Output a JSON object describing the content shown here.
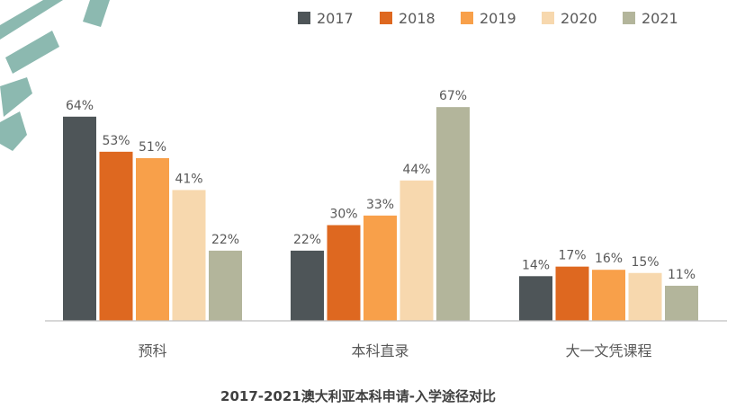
{
  "chart_data": {
    "type": "bar",
    "title": "2017-2021澳大利亚本科申请-入学途径对比",
    "categories": [
      "预科",
      "本科直录",
      "大一文凭课程"
    ],
    "series": [
      {
        "name": "2017",
        "color": "#4e5558",
        "values": [
          64,
          22,
          14
        ],
        "labels": [
          "64%",
          "22%",
          "14%"
        ]
      },
      {
        "name": "2018",
        "color": "#de6820",
        "values": [
          53,
          30,
          17
        ],
        "labels": [
          "53%",
          "30%",
          "17%"
        ]
      },
      {
        "name": "2019",
        "color": "#f8a04a",
        "values": [
          51,
          33,
          16
        ],
        "labels": [
          "51%",
          "33%",
          "16%"
        ]
      },
      {
        "name": "2020",
        "color": "#f7d8ae",
        "values": [
          41,
          44,
          15
        ],
        "labels": [
          "41%",
          "44%",
          "15%"
        ]
      },
      {
        "name": "2021",
        "color": "#b3b59b",
        "values": [
          22,
          67,
          11
        ],
        "labels": [
          "22%",
          "67%",
          "11%"
        ]
      }
    ],
    "ylim": [
      0,
      67
    ],
    "legend_position": "top-right",
    "decoration_color": "#7fb1a7"
  }
}
